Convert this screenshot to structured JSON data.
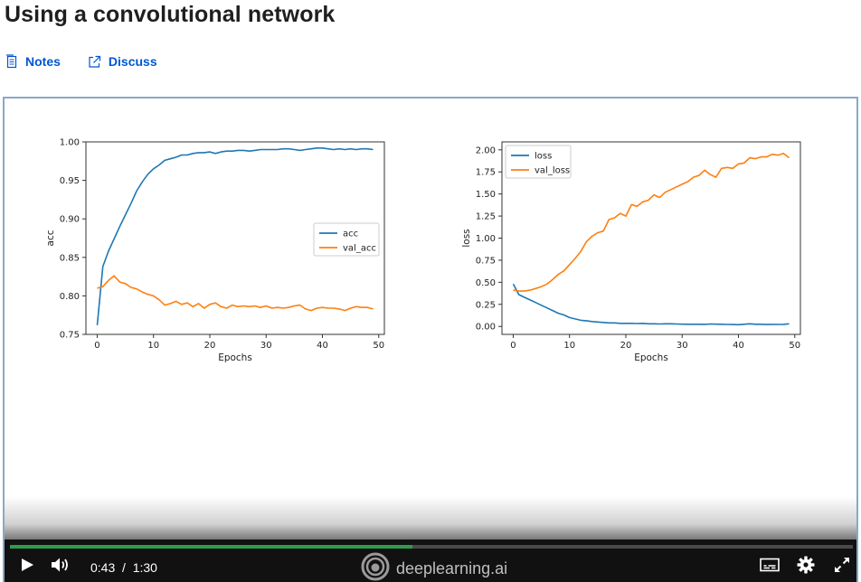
{
  "header": {
    "title": "Using a convolutional network"
  },
  "links": [
    {
      "label": "Notes",
      "icon": "notes-icon"
    },
    {
      "label": "Discuss",
      "icon": "external-link-icon"
    }
  ],
  "player": {
    "current_time": "0:43",
    "separator": "/",
    "duration": "1:30",
    "progress_fraction": 0.478,
    "brand": "deeplearning.ai",
    "colors": {
      "accent": "#2e9b4f",
      "bar": "#111111"
    }
  },
  "chart_data": [
    {
      "type": "line",
      "xlabel": "Epochs",
      "ylabel": "acc",
      "xlim": [
        -2,
        51
      ],
      "ylim": [
        0.75,
        1.0
      ],
      "xticks": [
        "0",
        "10",
        "20",
        "30",
        "40",
        "50"
      ],
      "yticks": [
        "0.75",
        "0.80",
        "0.85",
        "0.90",
        "0.95",
        "1.00"
      ],
      "legend": "center-right",
      "x": [
        0,
        1,
        2,
        3,
        4,
        5,
        6,
        7,
        8,
        9,
        10,
        11,
        12,
        13,
        14,
        15,
        16,
        17,
        18,
        19,
        20,
        21,
        22,
        23,
        24,
        25,
        26,
        27,
        28,
        29,
        30,
        31,
        32,
        33,
        34,
        35,
        36,
        37,
        38,
        39,
        40,
        41,
        42,
        43,
        44,
        45,
        46,
        47,
        48,
        49
      ],
      "series": [
        {
          "name": "acc",
          "color": "#1f77b4",
          "values": [
            0.762,
            0.838,
            0.858,
            0.874,
            0.89,
            0.905,
            0.92,
            0.936,
            0.948,
            0.958,
            0.965,
            0.97,
            0.976,
            0.978,
            0.98,
            0.983,
            0.983,
            0.985,
            0.986,
            0.986,
            0.987,
            0.985,
            0.987,
            0.988,
            0.988,
            0.989,
            0.989,
            0.988,
            0.989,
            0.99,
            0.99,
            0.99,
            0.99,
            0.991,
            0.991,
            0.99,
            0.989,
            0.99,
            0.991,
            0.992,
            0.992,
            0.991,
            0.99,
            0.991,
            0.99,
            0.991,
            0.99,
            0.991,
            0.991,
            0.99
          ]
        },
        {
          "name": "val_acc",
          "color": "#ff7f0e",
          "values": [
            0.81,
            0.812,
            0.82,
            0.826,
            0.818,
            0.816,
            0.811,
            0.809,
            0.805,
            0.802,
            0.8,
            0.795,
            0.788,
            0.79,
            0.793,
            0.789,
            0.791,
            0.786,
            0.79,
            0.784,
            0.789,
            0.791,
            0.786,
            0.784,
            0.788,
            0.786,
            0.787,
            0.786,
            0.787,
            0.785,
            0.787,
            0.784,
            0.785,
            0.784,
            0.785,
            0.787,
            0.788,
            0.783,
            0.781,
            0.784,
            0.785,
            0.784,
            0.784,
            0.783,
            0.781,
            0.784,
            0.786,
            0.785,
            0.785,
            0.783
          ]
        }
      ]
    },
    {
      "type": "line",
      "xlabel": "Epochs",
      "ylabel": "loss",
      "xlim": [
        -2,
        51
      ],
      "ylim": [
        -0.09,
        2.09
      ],
      "xticks": [
        "0",
        "10",
        "20",
        "30",
        "40",
        "50"
      ],
      "yticks": [
        "0.00",
        "0.25",
        "0.50",
        "0.75",
        "1.00",
        "1.25",
        "1.50",
        "1.75",
        "2.00"
      ],
      "legend": "upper-left",
      "x": [
        0,
        1,
        2,
        3,
        4,
        5,
        6,
        7,
        8,
        9,
        10,
        11,
        12,
        13,
        14,
        15,
        16,
        17,
        18,
        19,
        20,
        21,
        22,
        23,
        24,
        25,
        26,
        27,
        28,
        29,
        30,
        31,
        32,
        33,
        34,
        35,
        36,
        37,
        38,
        39,
        40,
        41,
        42,
        43,
        44,
        45,
        46,
        47,
        48,
        49
      ],
      "series": [
        {
          "name": "loss",
          "color": "#1f77b4",
          "values": [
            0.48,
            0.36,
            0.33,
            0.3,
            0.27,
            0.24,
            0.21,
            0.18,
            0.15,
            0.13,
            0.1,
            0.085,
            0.07,
            0.065,
            0.055,
            0.05,
            0.045,
            0.04,
            0.04,
            0.035,
            0.035,
            0.035,
            0.033,
            0.035,
            0.03,
            0.03,
            0.028,
            0.03,
            0.03,
            0.028,
            0.026,
            0.025,
            0.025,
            0.025,
            0.024,
            0.028,
            0.026,
            0.025,
            0.023,
            0.022,
            0.02,
            0.025,
            0.03,
            0.025,
            0.025,
            0.022,
            0.024,
            0.023,
            0.024,
            0.03
          ]
        },
        {
          "name": "val_loss",
          "color": "#ff7f0e",
          "values": [
            0.41,
            0.4,
            0.4,
            0.41,
            0.43,
            0.45,
            0.48,
            0.53,
            0.59,
            0.63,
            0.7,
            0.77,
            0.85,
            0.96,
            1.02,
            1.06,
            1.08,
            1.21,
            1.23,
            1.28,
            1.25,
            1.38,
            1.36,
            1.41,
            1.43,
            1.49,
            1.46,
            1.52,
            1.55,
            1.58,
            1.61,
            1.64,
            1.69,
            1.71,
            1.77,
            1.72,
            1.69,
            1.79,
            1.8,
            1.79,
            1.84,
            1.85,
            1.91,
            1.9,
            1.92,
            1.92,
            1.95,
            1.94,
            1.96,
            1.91
          ]
        }
      ]
    }
  ]
}
